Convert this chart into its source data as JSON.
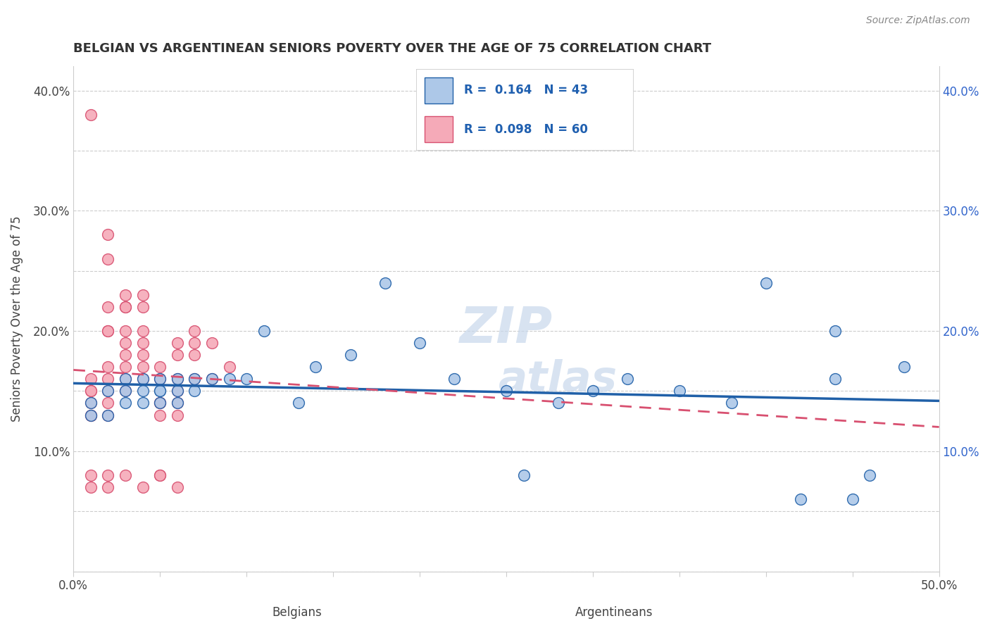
{
  "title": "BELGIAN VS ARGENTINEAN SENIORS POVERTY OVER THE AGE OF 75 CORRELATION CHART",
  "source": "Source: ZipAtlas.com",
  "ylabel": "Seniors Poverty Over the Age of 75",
  "xlim": [
    0.0,
    0.5
  ],
  "ylim": [
    0.0,
    0.42
  ],
  "xticks": [
    0.0,
    0.05,
    0.1,
    0.15,
    0.2,
    0.25,
    0.3,
    0.35,
    0.4,
    0.45,
    0.5
  ],
  "yticks": [
    0.0,
    0.05,
    0.1,
    0.15,
    0.2,
    0.25,
    0.3,
    0.35,
    0.4
  ],
  "xticklabels": [
    "0.0%",
    "",
    "",
    "",
    "",
    "",
    "",
    "",
    "",
    "",
    "50.0%"
  ],
  "yticklabels_left": [
    "",
    "",
    "10.0%",
    "",
    "20.0%",
    "",
    "30.0%",
    "",
    "40.0%"
  ],
  "yticklabels_right": [
    "",
    "",
    "10.0%",
    "",
    "20.0%",
    "",
    "30.0%",
    "",
    "40.0%"
  ],
  "belgian_color": "#adc8e8",
  "argentinean_color": "#f5aab8",
  "belgian_line_color": "#2060a8",
  "argentinean_line_color": "#d85070",
  "R_belgian": 0.164,
  "N_belgian": 43,
  "R_argentinean": 0.098,
  "N_argentinean": 60,
  "belgian_x": [
    0.01,
    0.01,
    0.02,
    0.02,
    0.03,
    0.03,
    0.03,
    0.04,
    0.04,
    0.04,
    0.05,
    0.05,
    0.05,
    0.05,
    0.06,
    0.06,
    0.06,
    0.07,
    0.07,
    0.08,
    0.09,
    0.1,
    0.11,
    0.13,
    0.14,
    0.16,
    0.18,
    0.2,
    0.22,
    0.25,
    0.26,
    0.28,
    0.3,
    0.32,
    0.35,
    0.38,
    0.4,
    0.42,
    0.44,
    0.44,
    0.45,
    0.46,
    0.48
  ],
  "belgian_y": [
    0.13,
    0.14,
    0.13,
    0.15,
    0.14,
    0.15,
    0.16,
    0.15,
    0.14,
    0.16,
    0.15,
    0.16,
    0.14,
    0.15,
    0.16,
    0.15,
    0.14,
    0.15,
    0.16,
    0.16,
    0.16,
    0.16,
    0.2,
    0.14,
    0.17,
    0.18,
    0.24,
    0.19,
    0.16,
    0.15,
    0.08,
    0.14,
    0.15,
    0.16,
    0.15,
    0.14,
    0.24,
    0.06,
    0.2,
    0.16,
    0.06,
    0.08,
    0.17
  ],
  "argentinean_x": [
    0.01,
    0.01,
    0.01,
    0.01,
    0.01,
    0.01,
    0.01,
    0.01,
    0.01,
    0.02,
    0.02,
    0.02,
    0.02,
    0.02,
    0.02,
    0.02,
    0.02,
    0.02,
    0.02,
    0.02,
    0.02,
    0.03,
    0.03,
    0.03,
    0.03,
    0.03,
    0.03,
    0.03,
    0.03,
    0.03,
    0.03,
    0.04,
    0.04,
    0.04,
    0.04,
    0.04,
    0.04,
    0.04,
    0.04,
    0.05,
    0.05,
    0.05,
    0.05,
    0.05,
    0.05,
    0.05,
    0.06,
    0.06,
    0.06,
    0.06,
    0.06,
    0.06,
    0.06,
    0.07,
    0.07,
    0.07,
    0.07,
    0.08,
    0.08,
    0.09
  ],
  "argentinean_y": [
    0.13,
    0.14,
    0.15,
    0.38,
    0.16,
    0.15,
    0.07,
    0.08,
    0.13,
    0.28,
    0.26,
    0.22,
    0.2,
    0.2,
    0.17,
    0.16,
    0.15,
    0.14,
    0.08,
    0.07,
    0.13,
    0.23,
    0.22,
    0.22,
    0.2,
    0.19,
    0.18,
    0.17,
    0.16,
    0.15,
    0.08,
    0.23,
    0.22,
    0.2,
    0.19,
    0.18,
    0.17,
    0.16,
    0.07,
    0.16,
    0.17,
    0.14,
    0.13,
    0.14,
    0.08,
    0.08,
    0.19,
    0.18,
    0.16,
    0.15,
    0.14,
    0.13,
    0.07,
    0.2,
    0.19,
    0.18,
    0.16,
    0.19,
    0.16,
    0.17
  ]
}
